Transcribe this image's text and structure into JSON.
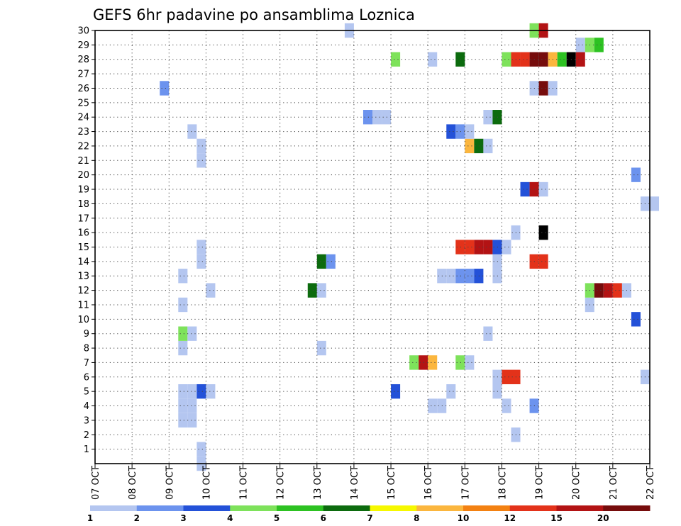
{
  "chart_data": {
    "type": "heatmap",
    "title": "GEFS 6hr padavine po ansamblima Loznica",
    "x_labels": [
      "07 OCT",
      "08 OCT",
      "09 OCT",
      "10 OCT",
      "11 OCT",
      "12 OCT",
      "13 OCT",
      "14 OCT",
      "15 OCT",
      "16 OCT",
      "17 OCT",
      "18 OCT",
      "19 OCT",
      "20 OCT",
      "21 OCT",
      "22 OCT"
    ],
    "y_labels": [
      "1",
      "2",
      "3",
      "4",
      "5",
      "6",
      "7",
      "8",
      "9",
      "10",
      "11",
      "12",
      "13",
      "14",
      "15",
      "16",
      "17",
      "18",
      "19",
      "20",
      "21",
      "22",
      "23",
      "24",
      "25",
      "26",
      "27",
      "28",
      "29",
      "30"
    ],
    "y_range": [
      0,
      30
    ],
    "time_step": "6hr",
    "grid": true,
    "colorbar": {
      "labels": [
        "1",
        "2",
        "3",
        "4",
        "5",
        "6",
        "7",
        "8",
        "10",
        "12",
        "15",
        "20"
      ],
      "colors": [
        "#b4c6f0",
        "#6c93ee",
        "#2351d8",
        "#7ee25b",
        "#2dc222",
        "#0c6b0e",
        "#f6f800",
        "#fbb63e",
        "#f38112",
        "#e3321a",
        "#b31314",
        "#760c0c"
      ]
    },
    "cells": [
      {
        "m": 0,
        "t": [
          [
            11,
            1
          ]
        ]
      },
      {
        "m": 1,
        "t": [
          [
            11,
            1
          ],
          [
            66,
            2
          ],
          [
            69,
            1
          ],
          [
            74,
            1
          ],
          [
            77,
            1
          ]
        ]
      },
      {
        "m": 2,
        "t": [
          [
            45,
            1
          ]
        ]
      },
      {
        "m": 3,
        "t": [
          [
            9,
            1
          ],
          [
            10,
            1
          ]
        ]
      },
      {
        "m": 4,
        "t": [
          [
            9,
            1
          ],
          [
            10,
            1
          ],
          [
            36,
            1
          ],
          [
            37,
            1
          ],
          [
            44,
            1
          ],
          [
            47,
            2
          ]
        ]
      },
      {
        "m": 5,
        "t": [
          [
            9,
            1
          ],
          [
            10,
            1
          ],
          [
            11,
            3
          ],
          [
            12,
            1
          ],
          [
            32,
            3
          ],
          [
            38,
            1
          ],
          [
            43,
            1
          ]
        ]
      },
      {
        "m": 6,
        "t": [
          [
            43,
            1
          ],
          [
            44,
            10
          ],
          [
            45,
            10
          ],
          [
            59,
            1
          ]
        ]
      },
      {
        "m": 7,
        "t": [
          [
            34,
            4
          ],
          [
            35,
            11
          ],
          [
            36,
            8
          ],
          [
            39,
            4
          ],
          [
            40,
            1
          ]
        ]
      },
      {
        "m": 8,
        "t": [
          [
            9,
            1
          ],
          [
            24,
            1
          ]
        ]
      },
      {
        "m": 9,
        "t": [
          [
            9,
            4
          ],
          [
            10,
            1
          ],
          [
            42,
            1
          ]
        ]
      },
      {
        "m": 10,
        "t": [
          [
            58,
            3
          ]
        ]
      },
      {
        "m": 11,
        "t": [
          [
            9,
            1
          ],
          [
            53,
            1
          ]
        ]
      },
      {
        "m": 12,
        "t": [
          [
            12,
            1
          ],
          [
            23,
            6
          ],
          [
            24,
            1
          ],
          [
            53,
            4
          ],
          [
            54,
            12
          ],
          [
            55,
            11
          ],
          [
            56,
            10
          ],
          [
            57,
            1
          ]
        ]
      },
      {
        "m": 13,
        "t": [
          [
            9,
            1
          ],
          [
            37,
            1
          ],
          [
            38,
            1
          ],
          [
            39,
            2
          ],
          [
            40,
            2
          ],
          [
            41,
            3
          ],
          [
            43,
            1
          ]
        ]
      },
      {
        "m": 14,
        "t": [
          [
            11,
            1
          ],
          [
            24,
            6
          ],
          [
            25,
            2
          ],
          [
            43,
            1
          ],
          [
            47,
            10
          ],
          [
            48,
            10
          ]
        ]
      },
      {
        "m": 15,
        "t": [
          [
            11,
            1
          ],
          [
            39,
            10
          ],
          [
            40,
            10
          ],
          [
            41,
            11
          ],
          [
            42,
            11
          ],
          [
            43,
            3
          ],
          [
            44,
            1
          ]
        ]
      },
      {
        "m": 16,
        "t": [
          [
            45,
            1
          ],
          [
            48,
            13
          ]
        ]
      },
      {
        "m": 18,
        "t": [
          [
            59,
            1
          ],
          [
            60,
            1
          ]
        ]
      },
      {
        "m": 19,
        "t": [
          [
            46,
            3
          ],
          [
            47,
            11
          ],
          [
            48,
            1
          ]
        ]
      },
      {
        "m": 20,
        "t": [
          [
            58,
            2
          ]
        ]
      },
      {
        "m": 21,
        "t": [
          [
            11,
            1
          ]
        ]
      },
      {
        "m": 22,
        "t": [
          [
            11,
            1
          ],
          [
            40,
            8
          ],
          [
            41,
            6
          ],
          [
            42,
            1
          ]
        ]
      },
      {
        "m": 23,
        "t": [
          [
            10,
            1
          ],
          [
            38,
            3
          ],
          [
            39,
            2
          ],
          [
            40,
            1
          ]
        ]
      },
      {
        "m": 24,
        "t": [
          [
            29,
            2
          ],
          [
            30,
            1
          ],
          [
            31,
            1
          ],
          [
            42,
            1
          ],
          [
            43,
            6
          ]
        ]
      },
      {
        "m": 26,
        "t": [
          [
            7,
            2
          ],
          [
            47,
            1
          ],
          [
            48,
            12
          ],
          [
            49,
            1
          ]
        ]
      },
      {
        "m": 28,
        "t": [
          [
            32,
            4
          ],
          [
            36,
            1
          ],
          [
            39,
            6
          ],
          [
            44,
            4
          ],
          [
            45,
            10
          ],
          [
            46,
            10
          ],
          [
            47,
            12
          ],
          [
            48,
            12
          ],
          [
            49,
            8
          ],
          [
            50,
            5
          ],
          [
            51,
            13
          ],
          [
            52,
            11
          ]
        ]
      },
      {
        "m": 29,
        "t": [
          [
            52,
            1
          ],
          [
            53,
            4
          ],
          [
            54,
            5
          ]
        ]
      },
      {
        "m": 30,
        "t": [
          [
            27,
            1
          ],
          [
            47,
            4
          ],
          [
            48,
            11
          ]
        ]
      }
    ]
  }
}
